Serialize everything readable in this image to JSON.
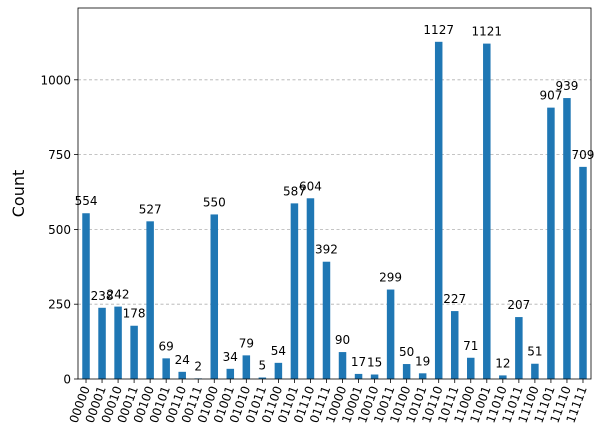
{
  "chart_data": {
    "type": "bar",
    "categories": [
      "00000",
      "00001",
      "00010",
      "00011",
      "00100",
      "00101",
      "00110",
      "00111",
      "01000",
      "01001",
      "01010",
      "01011",
      "01100",
      "01101",
      "01110",
      "01111",
      "10000",
      "10001",
      "10010",
      "10011",
      "10100",
      "10101",
      "10110",
      "10111",
      "11000",
      "11001",
      "11010",
      "11011",
      "11100",
      "11101",
      "11110",
      "11111"
    ],
    "values": [
      554,
      238,
      242,
      178,
      527,
      69,
      24,
      2,
      550,
      34,
      79,
      5,
      54,
      587,
      604,
      392,
      90,
      17,
      15,
      299,
      50,
      19,
      1127,
      227,
      71,
      1121,
      12,
      207,
      51,
      907,
      939,
      709
    ],
    "data_labels": [
      "554",
      "238",
      "242",
      "178",
      "527",
      "69",
      "24",
      "2",
      "550",
      "34",
      "79",
      "5",
      "54",
      "587",
      "604",
      "392",
      "90",
      "17",
      "15",
      "299",
      "50",
      "19",
      "1127",
      "227",
      "71",
      "1121",
      "12",
      "207",
      "51",
      "907",
      "939",
      "709"
    ],
    "ylabel": "Count",
    "xlabel": "",
    "title": "",
    "ylim": [
      0,
      1240
    ],
    "yticks": [
      0,
      250,
      500,
      750,
      1000
    ],
    "ytick_labels": [
      "0",
      "250",
      "500",
      "750",
      "1000"
    ],
    "grid": "horizontal-dashed",
    "bar_color": "#1f77b4",
    "grid_color": "#b0b0b0"
  }
}
